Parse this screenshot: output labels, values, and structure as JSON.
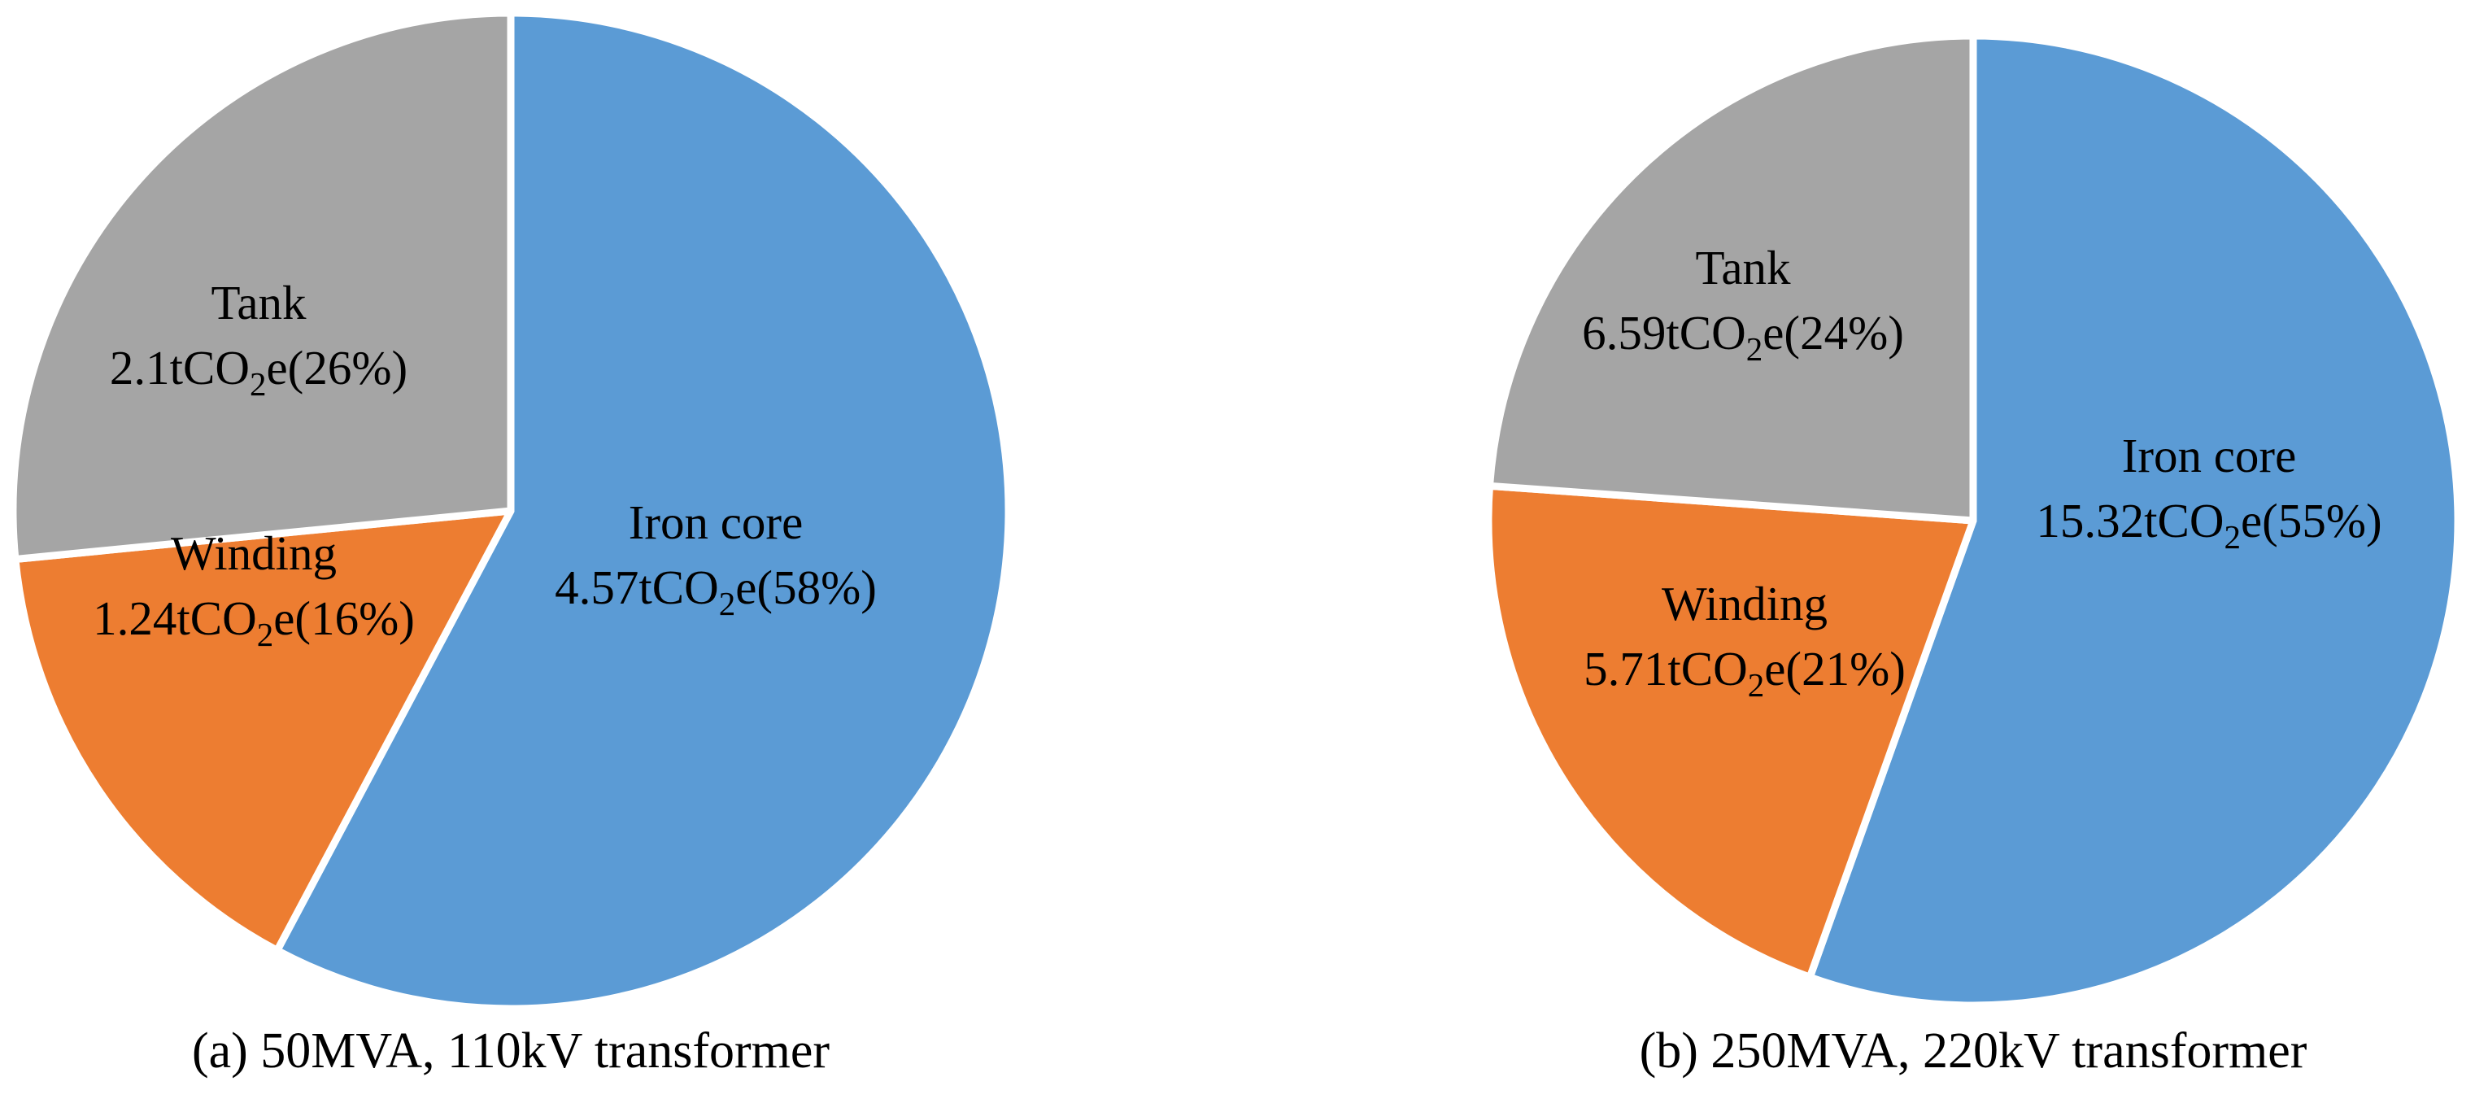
{
  "chart_data": [
    {
      "type": "pie",
      "caption": "(a) 50MVA, 110kV transformer",
      "unit": "tCO₂e",
      "slices": [
        {
          "label": "Iron core",
          "value": 4.57,
          "value_text": "4.57",
          "percent": 58,
          "percent_text": "58%",
          "color": "#5B9BD5"
        },
        {
          "label": "Winding",
          "value": 1.24,
          "value_text": "1.24",
          "percent": 16,
          "percent_text": "16%",
          "color": "#ED7D31"
        },
        {
          "label": "Tank",
          "value": 2.1,
          "value_text": "2.1",
          "percent": 26,
          "percent_text": "26%",
          "color": "#A5A5A5"
        }
      ]
    },
    {
      "type": "pie",
      "caption": "(b) 250MVA, 220kV transformer",
      "unit": "tCO₂e",
      "slices": [
        {
          "label": "Iron core",
          "value": 15.32,
          "value_text": "15.32",
          "percent": 55,
          "percent_text": "55%",
          "color": "#5B9BD5"
        },
        {
          "label": "Winding",
          "value": 5.71,
          "value_text": "5.71",
          "percent": 21,
          "percent_text": "21%",
          "color": "#ED7D31"
        },
        {
          "label": "Tank",
          "value": 6.59,
          "value_text": "6.59",
          "percent": 24,
          "percent_text": "24%",
          "color": "#A5A5A5"
        }
      ]
    }
  ]
}
